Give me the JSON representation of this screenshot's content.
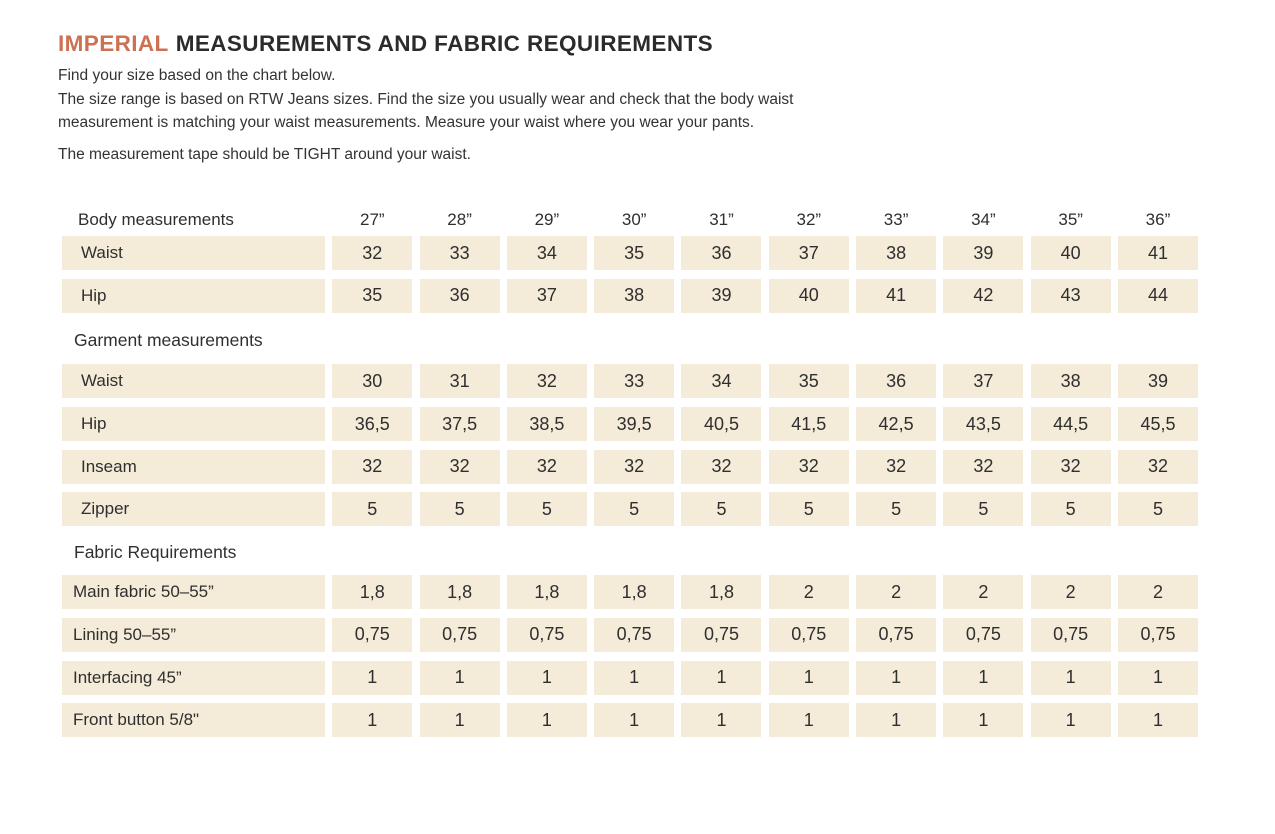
{
  "colors": {
    "accent": "#cd7155",
    "cell_background": "#f4ebd9",
    "text": "#2f2f2f"
  },
  "title": {
    "highlight": "IMPERIAL",
    "rest": "MEASUREMENTS AND FABRIC REQUIREMENTS"
  },
  "intro": {
    "p1": "Find your size based on the chart below.",
    "p2_line1": "The size range is based on RTW Jeans sizes. Find the size you usually wear and check that the body waist",
    "p2_line2": "measurement is matching your waist measurements. Measure your waist where you wear your pants.",
    "p3": "The measurement tape should be TIGHT around your waist."
  },
  "table": {
    "header": {
      "label": "Body measurements",
      "sizes": [
        "27”",
        "28”",
        "29”",
        "30”",
        "31”",
        "32”",
        "33”",
        "34”",
        "35”",
        "36”"
      ]
    },
    "body_rows": [
      {
        "label": "Waist",
        "values": [
          "32",
          "33",
          "34",
          "35",
          "36",
          "37",
          "38",
          "39",
          "40",
          "41"
        ]
      },
      {
        "label": "Hip",
        "values": [
          "35",
          "36",
          "37",
          "38",
          "39",
          "40",
          "41",
          "42",
          "43",
          "44"
        ]
      }
    ],
    "garment_section_title": "Garment measurements",
    "garment_rows": [
      {
        "label": "Waist",
        "values": [
          "30",
          "31",
          "32",
          "33",
          "34",
          "35",
          "36",
          "37",
          "38",
          "39"
        ]
      },
      {
        "label": "Hip",
        "values": [
          "36,5",
          "37,5",
          "38,5",
          "39,5",
          "40,5",
          "41,5",
          "42,5",
          "43,5",
          "44,5",
          "45,5"
        ]
      },
      {
        "label": "Inseam",
        "values": [
          "32",
          "32",
          "32",
          "32",
          "32",
          "32",
          "32",
          "32",
          "32",
          "32"
        ]
      },
      {
        "label": "Zipper",
        "values": [
          "5",
          "5",
          "5",
          "5",
          "5",
          "5",
          "5",
          "5",
          "5",
          "5"
        ]
      }
    ],
    "fabric_section_title": "Fabric Requirements",
    "fabric_rows": [
      {
        "label": "Main fabric 50–55”",
        "values": [
          "1,8",
          "1,8",
          "1,8",
          "1,8",
          "1,8",
          "2",
          "2",
          "2",
          "2",
          "2"
        ]
      },
      {
        "label": "Lining 50–55”",
        "values": [
          "0,75",
          "0,75",
          "0,75",
          "0,75",
          "0,75",
          "0,75",
          "0,75",
          "0,75",
          "0,75",
          "0,75"
        ]
      },
      {
        "label": "Interfacing 45”",
        "values": [
          "1",
          "1",
          "1",
          "1",
          "1",
          "1",
          "1",
          "1",
          "1",
          "1"
        ]
      },
      {
        "label": "Front button 5/8\"",
        "values": [
          "1",
          "1",
          "1",
          "1",
          "1",
          "1",
          "1",
          "1",
          "1",
          "1"
        ]
      }
    ]
  }
}
